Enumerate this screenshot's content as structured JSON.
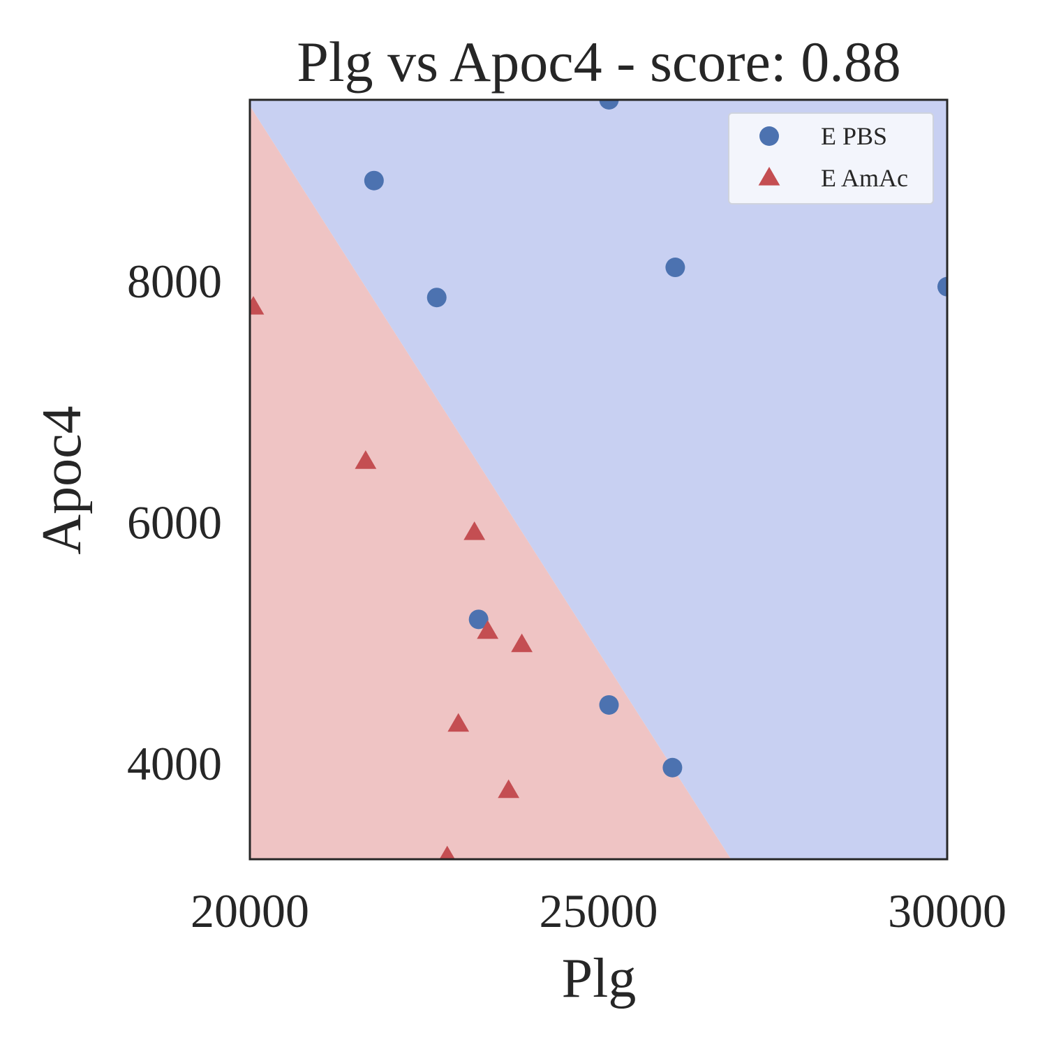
{
  "chart_data": {
    "type": "scatter",
    "title": "Plg vs Apoc4 - score: 0.88",
    "xlabel": "Plg",
    "ylabel": "Apoc4",
    "xlim": [
      20000,
      30000
    ],
    "ylim": [
      3200,
      9500
    ],
    "x_ticks": [
      20000,
      25000,
      30000
    ],
    "y_ticks": [
      4000,
      6000,
      8000
    ],
    "grid": false,
    "legend_position": "top-right",
    "decision_boundary": {
      "points": [
        [
          20000,
          9450
        ],
        [
          26900,
          3200
        ]
      ],
      "region_above_color": "#c8d0f2",
      "region_below_color": "#efc4c4"
    },
    "series": [
      {
        "name": "E PBS",
        "marker": "circle",
        "color": "#4c72b0",
        "x": [
          25150,
          21780,
          22680,
          26100,
          30000,
          23280,
          25150,
          26060
        ],
        "y": [
          9500,
          8830,
          7860,
          8110,
          7950,
          5190,
          4480,
          3960
        ]
      },
      {
        "name": "E AmAc",
        "marker": "triangle",
        "color": "#c44e52",
        "x": [
          20050,
          21660,
          23220,
          23410,
          23900,
          22990,
          23710,
          22830
        ],
        "y": [
          7780,
          6500,
          5910,
          5090,
          4980,
          4320,
          3770,
          3220
        ]
      }
    ]
  }
}
